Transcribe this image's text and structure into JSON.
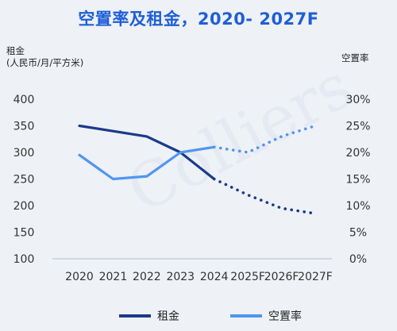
{
  "title": "空置率及租金，2020- 2027F",
  "watermark": "Colliers",
  "colors": {
    "background": "#eef1f6",
    "title": "#1f5fd6",
    "rent": "#1b3a8a",
    "vacancy": "#4f96f0"
  },
  "chart_data": {
    "type": "line",
    "categories": [
      "2020",
      "2021",
      "2022",
      "2023",
      "2024",
      "2025F",
      "2026F",
      "2027F"
    ],
    "ylabel": "租金",
    "ylabel_unit": "(人民币/月/平方米)",
    "ylim": [
      100,
      400
    ],
    "yticks": [
      "400",
      "350",
      "300",
      "250",
      "200",
      "150",
      "100"
    ],
    "y2label": "空置率",
    "y2lim": [
      0,
      30
    ],
    "y2ticks": [
      "30%",
      "25%",
      "20%",
      "15%",
      "10%",
      "5%",
      "0%"
    ],
    "grid": false,
    "legend_position": "bottom",
    "forecast_style": "dotted",
    "series": [
      {
        "name": "租金",
        "axis": "left",
        "values": [
          350,
          340,
          330,
          300,
          250,
          220,
          195,
          185
        ],
        "solid_through": "2024"
      },
      {
        "name": "空置率",
        "axis": "right",
        "values": [
          19.5,
          15,
          15.5,
          20,
          21,
          20,
          23,
          25
        ],
        "solid_through": "2024"
      }
    ]
  }
}
